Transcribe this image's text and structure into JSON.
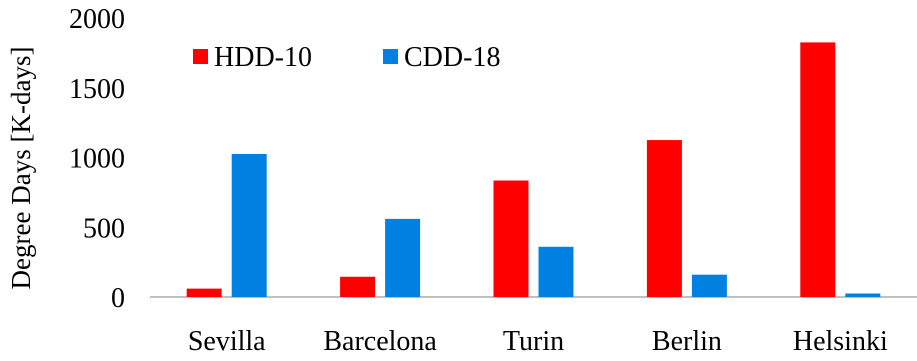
{
  "chart_data": {
    "type": "bar",
    "title": "",
    "xlabel": "",
    "ylabel": "Degree Days [K-days]",
    "ylim": [
      0,
      2000
    ],
    "yticks": [
      "0",
      "500",
      "1000",
      "1500",
      "2000"
    ],
    "categories": [
      "Sevilla",
      "Barcelona",
      "Turin",
      "Berlin",
      "Helsinki"
    ],
    "series": [
      {
        "name": "HDD-10",
        "color": "#ff0000",
        "values": [
          60,
          145,
          835,
          1125,
          1825
        ]
      },
      {
        "name": "CDD-18",
        "color": "#0080e0",
        "values": [
          1025,
          560,
          360,
          160,
          25
        ]
      }
    ],
    "legend_position": "top-left",
    "grid": false
  }
}
